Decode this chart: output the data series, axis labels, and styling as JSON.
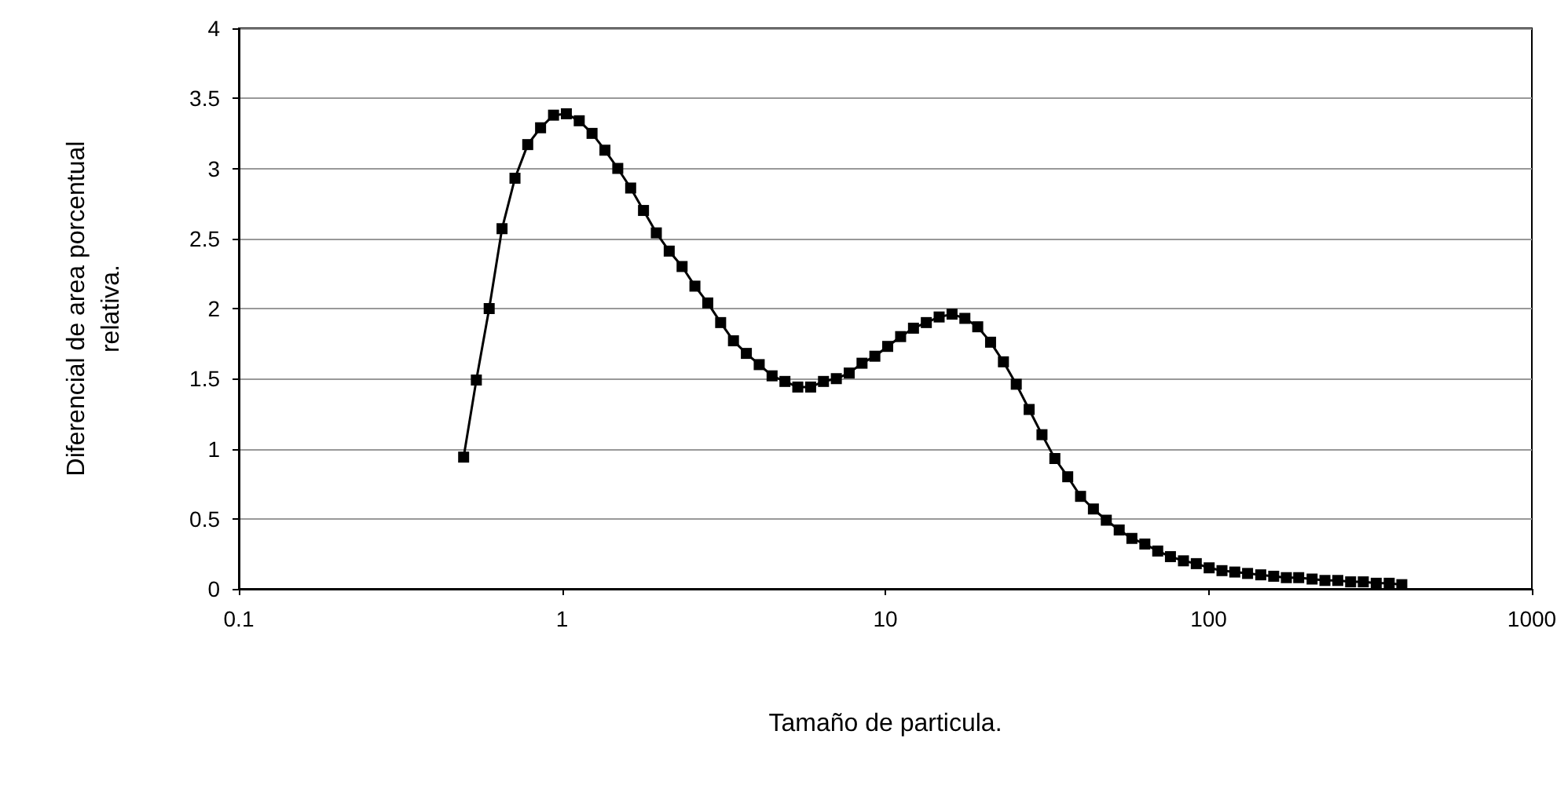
{
  "chart_data": {
    "type": "line",
    "xlabel": "Tamaño de particula.",
    "ylabel": "Diferencial de area porcentual\nrelativa.",
    "log": "x",
    "xlim": [
      0.1,
      1000
    ],
    "xticks": [
      0.1,
      1,
      10,
      100,
      1000
    ],
    "ylim": [
      0,
      4
    ],
    "yticks": [
      0,
      0.5,
      1,
      1.5,
      2,
      2.5,
      3,
      3.5,
      4
    ],
    "grid": "y",
    "marker": "square",
    "line_style": "solid",
    "x": [
      0.496,
      0.543,
      0.595,
      0.652,
      0.715,
      0.783,
      0.858,
      0.941,
      1.031,
      1.13,
      1.238,
      1.357,
      1.487,
      1.63,
      1.786,
      1.957,
      2.145,
      2.351,
      2.576,
      2.823,
      3.094,
      3.39,
      3.716,
      4.072,
      4.463,
      4.891,
      5.36,
      5.874,
      6.437,
      7.054,
      7.731,
      8.47,
      9.28,
      10.17,
      11.15,
      12.22,
      13.39,
      14.67,
      16.08,
      17.62,
      19.31,
      21.16,
      23.19,
      25.41,
      27.85,
      30.52,
      33.45,
      36.66,
      40.17,
      44.02,
      48.25,
      52.9,
      57.9,
      63.5,
      69.6,
      76.2,
      83.6,
      91.6,
      100.4,
      110,
      120.5,
      132,
      145,
      159,
      174,
      190,
      209,
      229,
      251,
      275,
      301,
      330,
      362,
      396
    ],
    "series": [
      {
        "color": "#000000",
        "values": [
          0.94,
          1.49,
          2.0,
          2.57,
          2.93,
          3.17,
          3.29,
          3.38,
          3.39,
          3.34,
          3.25,
          3.13,
          3.0,
          2.86,
          2.7,
          2.54,
          2.41,
          2.3,
          2.16,
          2.04,
          1.9,
          1.77,
          1.68,
          1.6,
          1.52,
          1.48,
          1.44,
          1.44,
          1.48,
          1.5,
          1.54,
          1.61,
          1.66,
          1.73,
          1.8,
          1.86,
          1.9,
          1.94,
          1.96,
          1.93,
          1.87,
          1.76,
          1.62,
          1.46,
          1.28,
          1.1,
          0.93,
          0.8,
          0.66,
          0.57,
          0.49,
          0.42,
          0.36,
          0.32,
          0.27,
          0.23,
          0.2,
          0.18,
          0.15,
          0.13,
          0.12,
          0.11,
          0.1,
          0.09,
          0.08,
          0.08,
          0.07,
          0.06,
          0.06,
          0.05,
          0.05,
          0.04,
          0.04,
          0.03
        ]
      }
    ]
  }
}
